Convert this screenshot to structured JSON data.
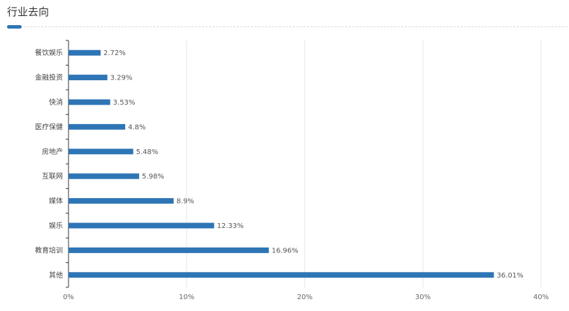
{
  "header": {
    "title": "行业去向"
  },
  "colors": {
    "bar": "#2e75b6",
    "accent": "#2e75b6",
    "grid": "#e6e6e6",
    "axis": "#333333"
  },
  "chart_data": {
    "type": "bar",
    "orientation": "horizontal",
    "title": "行业去向",
    "categories": [
      "餐饮娱乐",
      "金融投资",
      "快消",
      "医疗保健",
      "房地产",
      "互联网",
      "媒体",
      "娱乐",
      "教育培训",
      "其他"
    ],
    "values": [
      2.72,
      3.29,
      3.53,
      4.8,
      5.48,
      5.98,
      8.9,
      12.33,
      16.96,
      36.01
    ],
    "value_labels": [
      "2.72%",
      "3.29%",
      "3.53%",
      "4.8%",
      "5.48%",
      "5.98%",
      "8.9%",
      "12.33%",
      "16.96%",
      "36.01%"
    ],
    "xlim": [
      0,
      40
    ],
    "xticks": [
      0,
      10,
      20,
      30,
      40
    ],
    "xtick_labels": [
      "0%",
      "10%",
      "20%",
      "30%",
      "40%"
    ],
    "grid": "vertical",
    "legend": "none"
  }
}
